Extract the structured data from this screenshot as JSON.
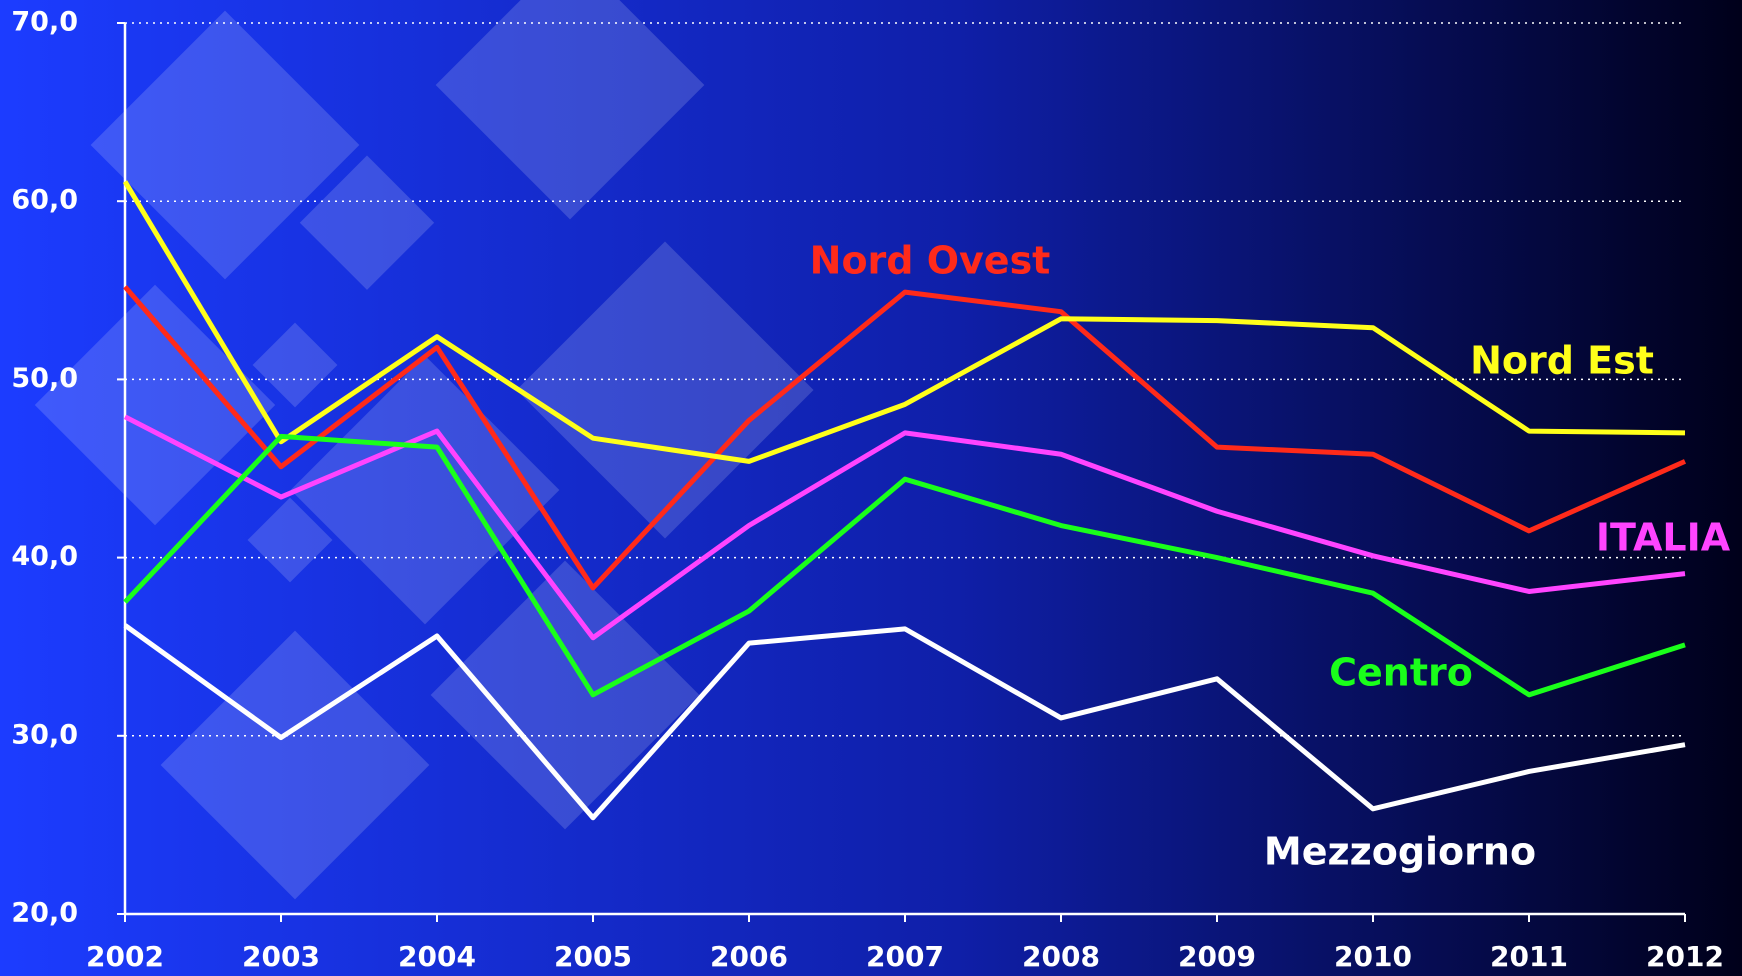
{
  "chart_data": {
    "type": "line",
    "categories": [
      "2002",
      "2003",
      "2004",
      "2005",
      "2006",
      "2007",
      "2008",
      "2009",
      "2010",
      "2011",
      "2012"
    ],
    "series": [
      {
        "name": "Nord Ovest",
        "color": "#ff2a1a",
        "values": [
          55.2,
          45.1,
          51.8,
          38.3,
          47.7,
          54.9,
          53.8,
          46.2,
          45.8,
          41.5,
          45.4
        ]
      },
      {
        "name": "Nord Est",
        "color": "#ffff1a",
        "values": [
          61.1,
          46.5,
          52.4,
          46.7,
          45.4,
          48.6,
          53.4,
          53.3,
          52.9,
          47.1,
          47.0
        ]
      },
      {
        "name": "ITALIA",
        "color": "#ff44ff",
        "values": [
          47.9,
          43.4,
          47.1,
          35.5,
          41.8,
          47.0,
          45.8,
          42.6,
          40.1,
          38.1,
          39.1
        ]
      },
      {
        "name": "Centro",
        "color": "#1aff1a",
        "values": [
          37.5,
          46.8,
          46.2,
          32.3,
          37.0,
          44.4,
          41.8,
          40.0,
          38.0,
          32.3,
          35.1
        ]
      },
      {
        "name": "Mezzogiorno",
        "color": "#ffffff",
        "values": [
          36.2,
          29.9,
          35.6,
          25.4,
          35.2,
          36.0,
          31.0,
          33.2,
          25.9,
          28.0,
          29.5
        ]
      }
    ],
    "ylim": [
      20,
      70
    ],
    "yticks": [
      {
        "value": 20,
        "label": "20,0"
      },
      {
        "value": 30,
        "label": "30,0"
      },
      {
        "value": 40,
        "label": "40,0"
      },
      {
        "value": 50,
        "label": "50,0"
      },
      {
        "value": 60,
        "label": "60,0"
      },
      {
        "value": 70,
        "label": "70,0"
      }
    ],
    "grid": true
  }
}
